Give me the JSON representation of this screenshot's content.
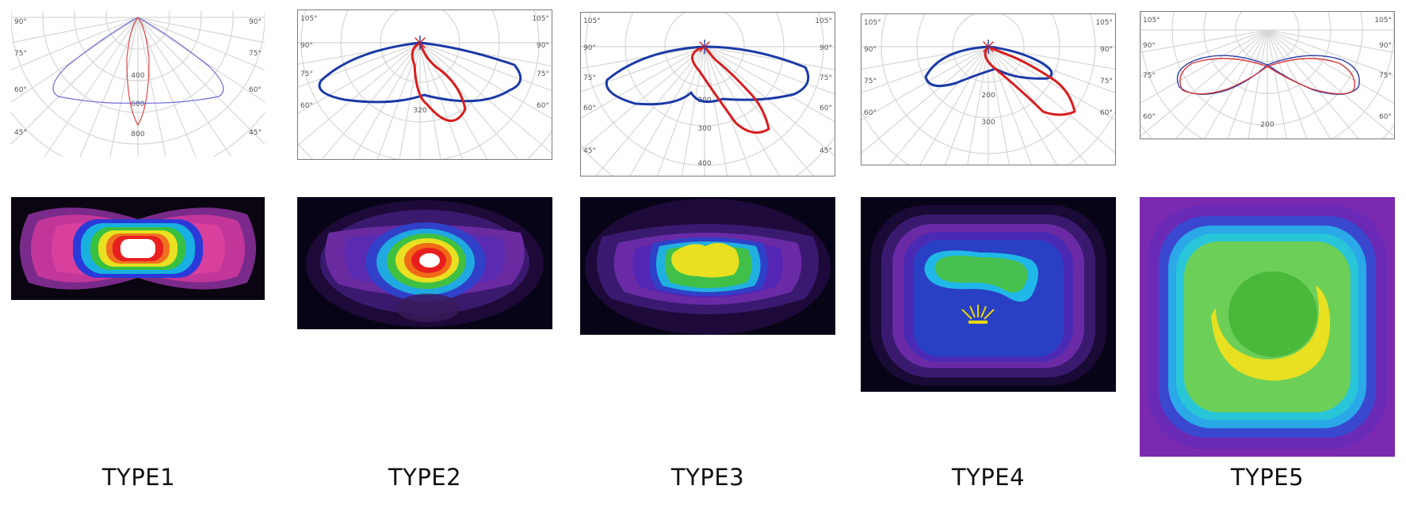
{
  "chart_data": [
    {
      "type": "polar-line",
      "label": "TYPE1",
      "angle_labels": [
        "90°",
        "75°",
        "60°",
        "45°"
      ],
      "radial_labels": [
        "400",
        "600",
        "800"
      ],
      "series_colors": [
        "#6b6bd8",
        "#e04444"
      ],
      "style": "thin"
    },
    {
      "type": "polar-line",
      "label": "TYPE2",
      "angle_labels": [
        "105°",
        "90°",
        "75°",
        "60°"
      ],
      "radial_labels": [
        "320"
      ],
      "series_colors": [
        "#1a3aa8",
        "#d81e1e"
      ],
      "style": "thick"
    },
    {
      "type": "polar-line",
      "label": "TYPE3",
      "angle_labels": [
        "105°",
        "90°",
        "75°",
        "60°",
        "45°"
      ],
      "radial_labels": [
        "200",
        "300",
        "400"
      ],
      "series_colors": [
        "#1a3aa8",
        "#d81e1e"
      ],
      "style": "thick"
    },
    {
      "type": "polar-line",
      "label": "TYPE4",
      "angle_labels": [
        "105°",
        "90°",
        "75°",
        "60°"
      ],
      "radial_labels": [
        "200",
        "300"
      ],
      "series_colors": [
        "#1a3aa8",
        "#d81e1e"
      ],
      "style": "thick"
    },
    {
      "type": "polar-line",
      "label": "TYPE5",
      "angle_labels": [
        "105°",
        "90°",
        "75°",
        "60°"
      ],
      "radial_labels": [
        "200"
      ],
      "series_colors": [
        "#2a3aa8",
        "#d83a3a"
      ],
      "style": "thin"
    }
  ],
  "types": [
    {
      "label": "TYPE1"
    },
    {
      "label": "TYPE2"
    },
    {
      "label": "TYPE3"
    },
    {
      "label": "TYPE4"
    },
    {
      "label": "TYPE5"
    }
  ],
  "colors": {
    "heat_background": "#080418",
    "heat_scale": [
      "#3a1a6e",
      "#8a2aa8",
      "#d83aa8",
      "#2a4ae8",
      "#1ab8e8",
      "#3ac83a",
      "#e8e81a",
      "#e83a1a",
      "#ffffff"
    ]
  }
}
